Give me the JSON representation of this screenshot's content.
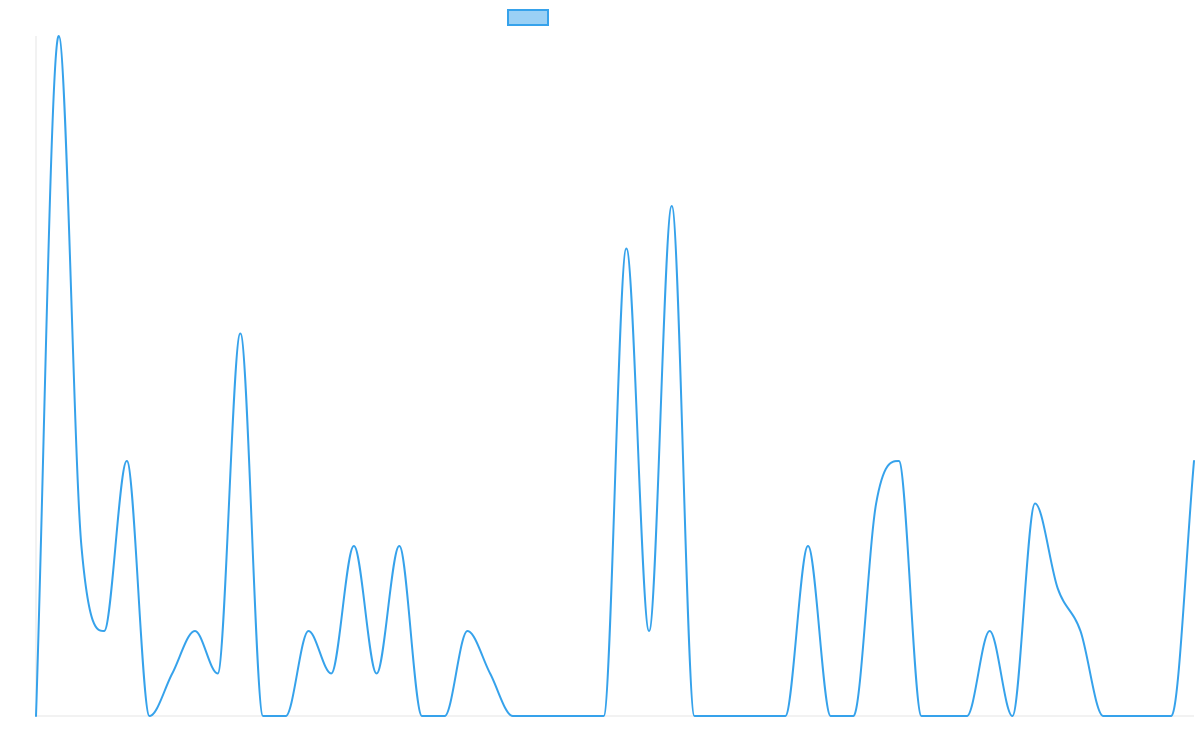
{
  "chart_data": {
    "type": "line",
    "title": "",
    "xlabel": "",
    "ylabel": "",
    "legend": {
      "position": "top",
      "entries": [
        {
          "label": ""
        }
      ]
    },
    "x": [
      0,
      1,
      2,
      3,
      4,
      5,
      6,
      7,
      8,
      9,
      10,
      11,
      12,
      13,
      14,
      15,
      16,
      17,
      18,
      19,
      20,
      21,
      22,
      23,
      24,
      25,
      26,
      27,
      28,
      29,
      30,
      31,
      32,
      33,
      34,
      35,
      36,
      37,
      38,
      39,
      40,
      41,
      42,
      43,
      44,
      45,
      46,
      47,
      48,
      49,
      50,
      51
    ],
    "series": [
      {
        "values": [
          0,
          16,
          4,
          2,
          6,
          0,
          1,
          2,
          1,
          9,
          0,
          0,
          2,
          1,
          4,
          1,
          4,
          0,
          0,
          2,
          1,
          0,
          0,
          0,
          0,
          0,
          11,
          2,
          12,
          0,
          0,
          0,
          0,
          0,
          4,
          0,
          0,
          5,
          6,
          0,
          0,
          0,
          2,
          0,
          5,
          3,
          2,
          0,
          0,
          0,
          0,
          6
        ],
        "color": "#36a2eb"
      }
    ],
    "ylim": [
      0,
      16
    ],
    "grid": false,
    "line_color": "#36a2eb",
    "legend_fill": "#9ad0f5",
    "axis_color": "#e6e6e6",
    "smoothing": "monotone"
  }
}
